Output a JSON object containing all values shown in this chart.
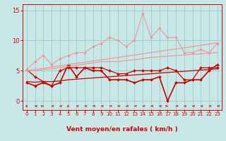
{
  "title": "",
  "xlabel": "Vent moyen/en rafales ( km/h )",
  "ylabel": "",
  "bg_color": "#c8e8e8",
  "grid_color": "#a0c8c8",
  "text_color": "#dd0000",
  "xlim": [
    -0.5,
    23.5
  ],
  "ylim": [
    -1.5,
    16
  ],
  "yticks": [
    0,
    5,
    10,
    15
  ],
  "xticks": [
    0,
    1,
    2,
    3,
    4,
    5,
    6,
    7,
    8,
    9,
    10,
    11,
    12,
    13,
    14,
    15,
    16,
    17,
    18,
    19,
    20,
    21,
    22,
    23
  ],
  "series": [
    {
      "y": [
        3.0,
        2.5,
        3.0,
        2.5,
        3.0,
        6.0,
        4.0,
        5.5,
        5.0,
        5.0,
        3.5,
        3.5,
        3.5,
        3.0,
        3.5,
        3.5,
        4.0,
        0.0,
        3.0,
        3.0,
        3.5,
        3.5,
        5.0,
        6.0
      ],
      "color": "#cc0000",
      "lw": 1.2,
      "marker": "D",
      "ms": 2.0
    },
    {
      "y": [
        3.2,
        3.1,
        3.2,
        3.2,
        3.3,
        3.5,
        3.6,
        3.7,
        3.8,
        3.9,
        4.0,
        4.1,
        4.2,
        4.3,
        4.4,
        4.5,
        4.6,
        4.7,
        4.8,
        4.9,
        5.0,
        5.1,
        5.2,
        5.3
      ],
      "color": "#cc0000",
      "lw": 0.9,
      "marker": null,
      "ms": 0
    },
    {
      "y": [
        5.2,
        4.0,
        3.2,
        2.5,
        5.0,
        5.5,
        5.5,
        5.5,
        5.5,
        5.5,
        5.0,
        4.5,
        4.5,
        5.0,
        5.0,
        5.0,
        5.0,
        5.5,
        5.0,
        3.5,
        3.5,
        5.5,
        5.5,
        5.5
      ],
      "color": "#cc0000",
      "lw": 0.9,
      "marker": "D",
      "ms": 2.0
    },
    {
      "y": [
        5.0,
        5.0,
        5.2,
        5.3,
        5.5,
        5.7,
        5.9,
        6.1,
        6.3,
        6.5,
        6.5,
        6.5,
        6.7,
        6.8,
        7.0,
        7.2,
        7.3,
        7.4,
        7.5,
        7.6,
        7.7,
        7.8,
        7.9,
        8.0
      ],
      "color": "#ee9999",
      "lw": 0.9,
      "marker": null,
      "ms": 0
    },
    {
      "y": [
        5.2,
        6.5,
        7.5,
        6.0,
        7.0,
        7.5,
        8.0,
        8.0,
        9.0,
        9.5,
        10.5,
        10.0,
        9.0,
        10.0,
        14.5,
        10.5,
        12.0,
        10.5,
        10.5,
        8.0,
        8.0,
        8.5,
        8.0,
        9.5
      ],
      "color": "#ee9999",
      "lw": 0.8,
      "marker": "D",
      "ms": 2.0
    },
    {
      "y": [
        5.0,
        5.2,
        5.4,
        5.6,
        5.8,
        6.0,
        6.2,
        6.4,
        6.6,
        6.8,
        7.0,
        7.2,
        7.4,
        7.6,
        7.8,
        8.0,
        8.2,
        8.4,
        8.6,
        8.8,
        9.0,
        9.2,
        9.4,
        9.6
      ],
      "color": "#ee9999",
      "lw": 0.9,
      "marker": null,
      "ms": 0
    }
  ],
  "wind_dirs": [
    225,
    270,
    90,
    270,
    270,
    225,
    270,
    270,
    270,
    270,
    270,
    270,
    270,
    270,
    270,
    270,
    270,
    90,
    270,
    270,
    270,
    270,
    270,
    270
  ]
}
